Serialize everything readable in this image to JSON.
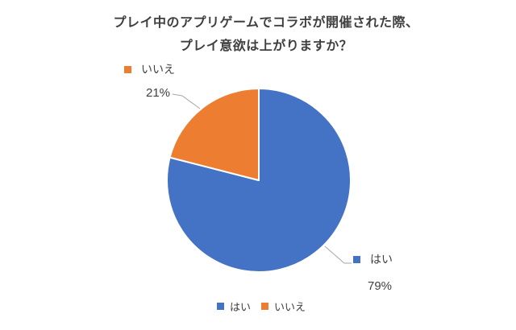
{
  "title": {
    "line1": "プレイ中のアプリゲームでコラボが開催された際、",
    "line2": "プレイ意欲は上がりますか？"
  },
  "chart_data": {
    "type": "pie",
    "title": "プレイ中のアプリゲームでコラボが開催された際、プレイ意欲は上がりますか？",
    "labels": [
      "はい",
      "いいえ"
    ],
    "slice_names": [
      "yes",
      "no"
    ],
    "values": [
      79,
      21
    ],
    "value_labels": [
      "79%",
      "21%"
    ],
    "colors": [
      "#4472C4",
      "#ED7D31"
    ],
    "start_angle_deg": 0,
    "direction": "clockwise",
    "legend_position": "bottom",
    "leader_line_color": "#A6A6A6"
  },
  "callouts": {
    "yes": {
      "label": "はい",
      "percent": "79%"
    },
    "no": {
      "label": "いいえ",
      "percent": "21%"
    }
  },
  "legend": {
    "items": [
      {
        "label": "はい",
        "color": "#4472C4"
      },
      {
        "label": "いいえ",
        "color": "#ED7D31"
      }
    ]
  }
}
